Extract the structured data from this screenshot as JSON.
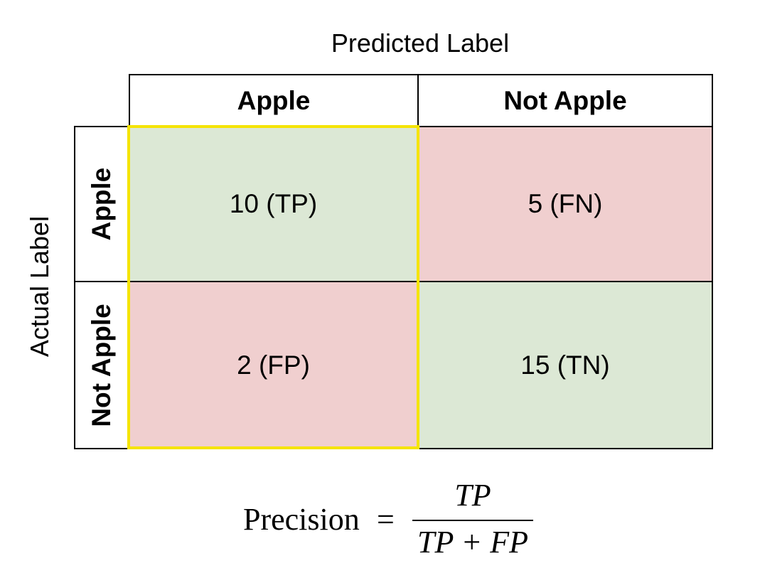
{
  "axis_titles": {
    "predicted": "Predicted Label",
    "actual": "Actual Label"
  },
  "columns": [
    "Apple",
    "Not Apple"
  ],
  "rows": [
    "Apple",
    "Not Apple"
  ],
  "cells": {
    "tp": "10 (TP)",
    "fn": "5 (FN)",
    "fp": "2 (FP)",
    "tn": "15 (TN)"
  },
  "colors": {
    "correct": "#dce8d5",
    "incorrect": "#f0cfcf",
    "highlight": "#f5e400"
  },
  "formula": {
    "lhs": "Precision",
    "eq": "=",
    "numerator": "TP",
    "denominator": "TP + FP"
  }
}
